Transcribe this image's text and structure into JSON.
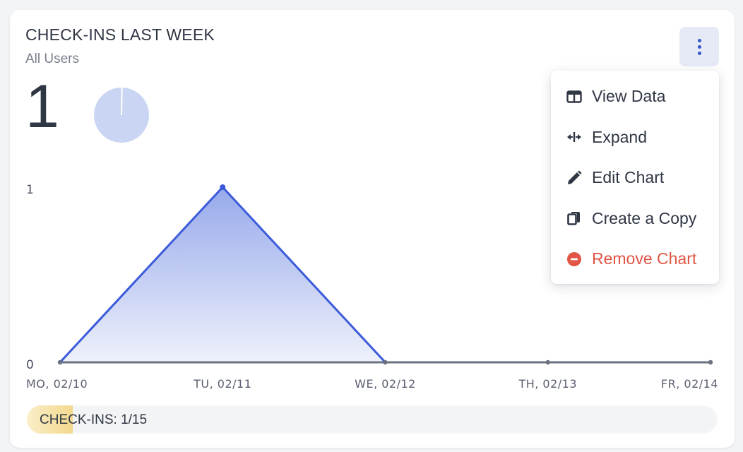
{
  "card": {
    "title": "CHECK-INS LAST WEEK",
    "subtitle": "All Users",
    "big_number": "1",
    "mini_pie_fraction": 0.003
  },
  "menu": {
    "items": [
      {
        "label": "View Data",
        "icon": "table-icon"
      },
      {
        "label": "Expand",
        "icon": "expand-icon"
      },
      {
        "label": "Edit Chart",
        "icon": "pencil-icon"
      },
      {
        "label": "Create a Copy",
        "icon": "copy-icon"
      },
      {
        "label": "Remove Chart",
        "icon": "minus-circle-icon"
      }
    ]
  },
  "progress": {
    "label": "CHECK-INS: 1/15",
    "value": 1,
    "total": 15
  },
  "colors": {
    "accent": "#3b5bd9",
    "area_top": "#97a9ec",
    "baseline": "#6b7180",
    "danger": "#e05545",
    "progress": "#f2d98d",
    "pie": "#c9d5f3"
  },
  "chart_data": {
    "type": "area",
    "categories": [
      "MO, 02/10",
      "TU, 02/11",
      "WE, 02/12",
      "TH, 02/13",
      "FR, 02/14"
    ],
    "values": [
      0,
      1,
      0,
      0,
      0
    ],
    "yticks": [
      "0",
      "1"
    ],
    "ylim": [
      0,
      1
    ],
    "title": "",
    "xlabel": "",
    "ylabel": "",
    "grid": false,
    "legend": "none"
  }
}
